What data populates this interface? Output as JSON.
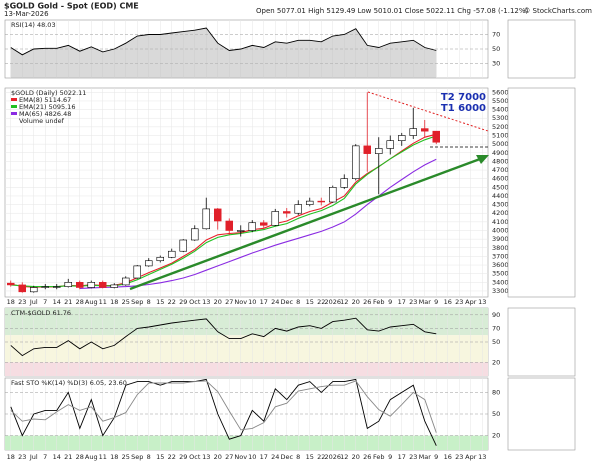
{
  "header": {
    "symbol": "$GOLD Gold - Spot (EOD) CME",
    "date": "13-Mar-2026",
    "quote": "Open 5077.01 High 5129.49 Low 5010.01 Close 5022.11 Chg -57.08 (-1.12%)",
    "source": "© StockCharts.com"
  },
  "chart_data": [
    {
      "type": "line",
      "title": "RSI(14) 48.03",
      "color": "#000000",
      "fill": "#b4b4b4",
      "values": [
        52,
        42,
        50,
        51,
        51,
        55,
        47,
        53,
        46,
        50,
        58,
        68,
        70,
        70,
        72,
        74,
        76,
        79,
        58,
        48,
        50,
        55,
        52,
        60,
        58,
        62,
        62,
        60,
        68,
        70,
        78,
        55,
        52,
        58,
        60,
        62,
        52,
        48,
        null,
        null,
        null,
        null
      ],
      "ylim": [
        10,
        90
      ],
      "yticks": [
        30,
        50,
        70
      ],
      "grid": true
    },
    {
      "type": "candlestick",
      "title": "$GOLD (Daily) 5022.11",
      "volume_label": "Volume undef",
      "annotations": [
        "T2 7000",
        "T1 6000"
      ],
      "categories": [
        "18",
        "23",
        "Jul",
        "7",
        "14",
        "21",
        "28",
        "Aug",
        "11",
        "18",
        "25",
        "Sep",
        "8",
        "15",
        "22",
        "29",
        "Oct",
        "13",
        "20",
        "27",
        "Nov",
        "10",
        "17",
        "24",
        "Dec",
        "8",
        "15",
        "22",
        "2026",
        "12",
        "20",
        "26",
        "Feb",
        "9",
        "17",
        "23",
        "Mar",
        "9",
        "16",
        "23",
        "Apr",
        "13"
      ],
      "open": [
        3390,
        3370,
        3290,
        3340,
        3350,
        3350,
        3400,
        3340,
        3400,
        3340,
        3370,
        3450,
        3590,
        3650,
        3690,
        3760,
        3890,
        4020,
        4250,
        4110,
        4000,
        4000,
        4090,
        4060,
        4220,
        4200,
        4300,
        4340,
        4330,
        4500,
        4600,
        4980,
        4890,
        4950,
        5040,
        5100,
        5180,
        5150,
        null,
        null,
        null,
        null
      ],
      "high": [
        3420,
        3400,
        3360,
        3380,
        3380,
        3440,
        3420,
        3420,
        3420,
        3390,
        3470,
        3600,
        3680,
        3710,
        3790,
        3900,
        4060,
        4380,
        4260,
        4140,
        4060,
        4120,
        4120,
        4250,
        4260,
        4350,
        4380,
        4380,
        4520,
        4650,
        5000,
        5600,
        5080,
        5100,
        5130,
        5420,
        5280,
        5130,
        null,
        null,
        null,
        null
      ],
      "low": [
        3350,
        3280,
        3280,
        3320,
        3320,
        3340,
        3320,
        3330,
        3330,
        3330,
        3360,
        3440,
        3580,
        3630,
        3680,
        3750,
        3880,
        4010,
        4010,
        3950,
        3930,
        3980,
        4030,
        4050,
        4150,
        4180,
        4280,
        4290,
        4320,
        4480,
        4580,
        4680,
        4420,
        4880,
        4980,
        5060,
        5080,
        5000,
        null,
        null,
        null,
        null
      ],
      "close": [
        3370,
        3290,
        3340,
        3350,
        3350,
        3400,
        3340,
        3400,
        3340,
        3370,
        3450,
        3590,
        3650,
        3690,
        3760,
        3890,
        4020,
        4250,
        4110,
        4000,
        4000,
        4090,
        4060,
        4220,
        4200,
        4300,
        4340,
        4330,
        4500,
        4600,
        4980,
        4890,
        4950,
        5040,
        5100,
        5180,
        5150,
        5022,
        null,
        null,
        null,
        null
      ],
      "color_up": "#ffffff",
      "color_down": "#e0202a",
      "series": [
        {
          "name": "EMA(8) 5114.67",
          "color": "#e8202a",
          "values": [
            3380,
            3350,
            3345,
            3347,
            3348,
            3365,
            3358,
            3372,
            3362,
            3364,
            3394,
            3452,
            3513,
            3566,
            3622,
            3700,
            3780,
            3890,
            3950,
            3965,
            3975,
            4010,
            4025,
            4080,
            4110,
            4170,
            4220,
            4255,
            4330,
            4400,
            4560,
            4660,
            4740,
            4830,
            4920,
            5010,
            5080,
            5115,
            null,
            null,
            null,
            null
          ]
        },
        {
          "name": "EMA(21) 5095.16",
          "color": "#22c022",
          "values": [
            3370,
            3360,
            3350,
            3350,
            3350,
            3360,
            3355,
            3365,
            3360,
            3360,
            3380,
            3430,
            3490,
            3550,
            3610,
            3680,
            3760,
            3860,
            3920,
            3950,
            3965,
            3990,
            4010,
            4050,
            4080,
            4140,
            4190,
            4230,
            4290,
            4370,
            4540,
            4650,
            4740,
            4830,
            4910,
            4990,
            5050,
            5095,
            null,
            null,
            null,
            null
          ]
        },
        {
          "name": "MA(65) 4826.48",
          "color": "#8a2be2",
          "values": [
            null,
            null,
            null,
            null,
            null,
            null,
            3330,
            3335,
            3340,
            3345,
            3350,
            3360,
            3375,
            3395,
            3420,
            3450,
            3490,
            3540,
            3590,
            3640,
            3690,
            3740,
            3785,
            3830,
            3870,
            3910,
            3950,
            3990,
            4040,
            4100,
            4190,
            4300,
            4400,
            4500,
            4590,
            4680,
            4760,
            4826,
            null,
            null,
            null,
            null
          ]
        }
      ],
      "ylim": [
        3230,
        5650
      ],
      "yticks": [
        3300,
        3400,
        3500,
        3600,
        3700,
        3800,
        3900,
        4000,
        4100,
        4200,
        4300,
        4400,
        4500,
        4600,
        4700,
        4800,
        4900,
        5000,
        5100,
        5200,
        5300,
        5400,
        5500,
        5600
      ],
      "grid": true
    },
    {
      "type": "line",
      "title": "CTM-$GOLD 61.76",
      "color": "#000000",
      "values": [
        45,
        30,
        40,
        42,
        42,
        52,
        40,
        50,
        40,
        45,
        58,
        70,
        72,
        75,
        78,
        80,
        82,
        84,
        65,
        55,
        55,
        62,
        58,
        70,
        66,
        72,
        74,
        70,
        80,
        82,
        85,
        68,
        66,
        72,
        74,
        76,
        65,
        62,
        null,
        null,
        null,
        null
      ],
      "bands": [
        {
          "from": 60,
          "to": 100,
          "color": "#d8ecd6"
        },
        {
          "from": 20,
          "to": 60,
          "color": "#f7f6df"
        },
        {
          "from": 0,
          "to": 20,
          "color": "#f6dde2"
        }
      ],
      "ylim": [
        0,
        100
      ],
      "yticks": [
        20,
        50,
        70,
        90
      ],
      "grid": true
    },
    {
      "type": "line",
      "title": "Fast STO %K(14) %D(3) 6.05, 23.60",
      "series": [
        {
          "name": "%K",
          "color": "#000000",
          "values": [
            60,
            20,
            50,
            55,
            55,
            80,
            30,
            70,
            20,
            45,
            90,
            95,
            95,
            90,
            95,
            95,
            95,
            98,
            50,
            15,
            20,
            55,
            40,
            85,
            70,
            90,
            95,
            80,
            95,
            95,
            98,
            30,
            40,
            70,
            80,
            90,
            40,
            6,
            null,
            null,
            null,
            null
          ]
        },
        {
          "name": "%D",
          "color": "#888888",
          "values": [
            55,
            40,
            43,
            42,
            53,
            63,
            55,
            60,
            40,
            45,
            52,
            77,
            93,
            93,
            93,
            93,
            95,
            96,
            81,
            54,
            28,
            30,
            38,
            60,
            65,
            82,
            85,
            88,
            90,
            90,
            96,
            74,
            56,
            47,
            63,
            80,
            70,
            24,
            null,
            null,
            null,
            null
          ]
        }
      ],
      "bands": [
        {
          "from": 0,
          "to": 20,
          "color": "#c8f0c8"
        }
      ],
      "ylim": [
        0,
        100
      ],
      "yticks": [
        20,
        50,
        80
      ],
      "grid": true
    }
  ]
}
